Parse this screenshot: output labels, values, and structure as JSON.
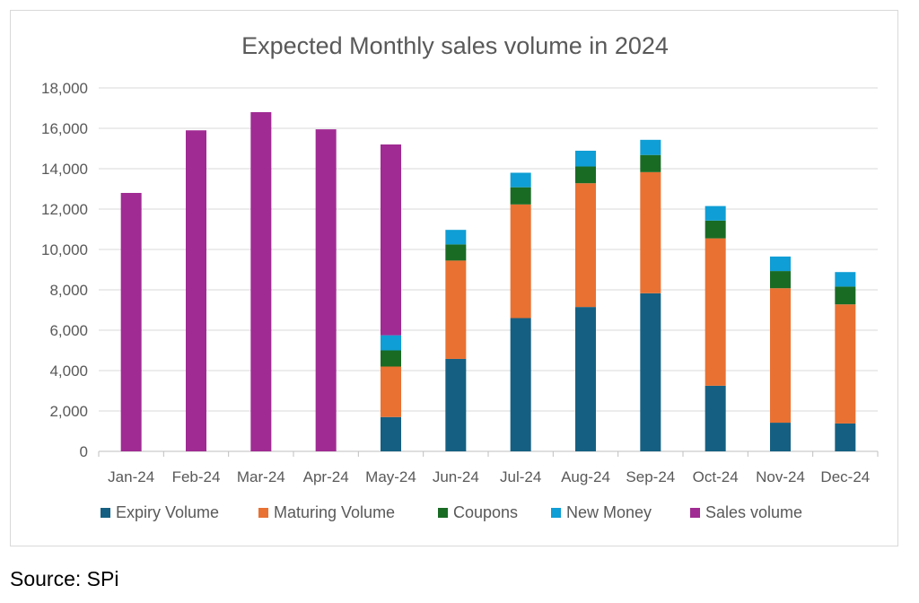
{
  "chart_data": {
    "type": "bar",
    "stacked": true,
    "title": "Expected Monthly sales volume in 2024",
    "xlabel": "",
    "ylabel": "",
    "ylim": [
      0,
      18000
    ],
    "yticks": [
      0,
      2000,
      4000,
      6000,
      8000,
      10000,
      12000,
      14000,
      16000,
      18000
    ],
    "ytick_labels": [
      "0",
      "2,000",
      "4,000",
      "6,000",
      "8,000",
      "10,000",
      "12,000",
      "14,000",
      "16,000",
      "18,000"
    ],
    "grid": true,
    "legend_position": "bottom",
    "categories": [
      "Jan-24",
      "Feb-24",
      "Mar-24",
      "Apr-24",
      "May-24",
      "Jun-24",
      "Jul-24",
      "Aug-24",
      "Sep-24",
      "Oct-24",
      "Nov-24",
      "Dec-24"
    ],
    "series": [
      {
        "name": "Expiry Volume",
        "color": "#156082",
        "values": [
          0,
          0,
          0,
          0,
          1700,
          4580,
          6600,
          7150,
          7830,
          3250,
          1420,
          1380
        ]
      },
      {
        "name": "Maturing Volume",
        "color": "#e97132",
        "values": [
          0,
          0,
          0,
          0,
          2500,
          4870,
          5630,
          6130,
          6000,
          7300,
          6660,
          5900
        ]
      },
      {
        "name": "Coupons",
        "color": "#196b24",
        "values": [
          0,
          0,
          0,
          0,
          800,
          800,
          850,
          830,
          850,
          880,
          850,
          880
        ]
      },
      {
        "name": "New Money",
        "color": "#0f9ed5",
        "values": [
          0,
          0,
          0,
          0,
          750,
          720,
          720,
          780,
          750,
          720,
          720,
          720
        ]
      },
      {
        "name": "Sales volume",
        "color": "#a02b93",
        "values": [
          12800,
          15900,
          16800,
          15950,
          9450,
          0,
          0,
          0,
          0,
          0,
          0,
          0
        ]
      }
    ]
  },
  "source": "Source: SPi"
}
